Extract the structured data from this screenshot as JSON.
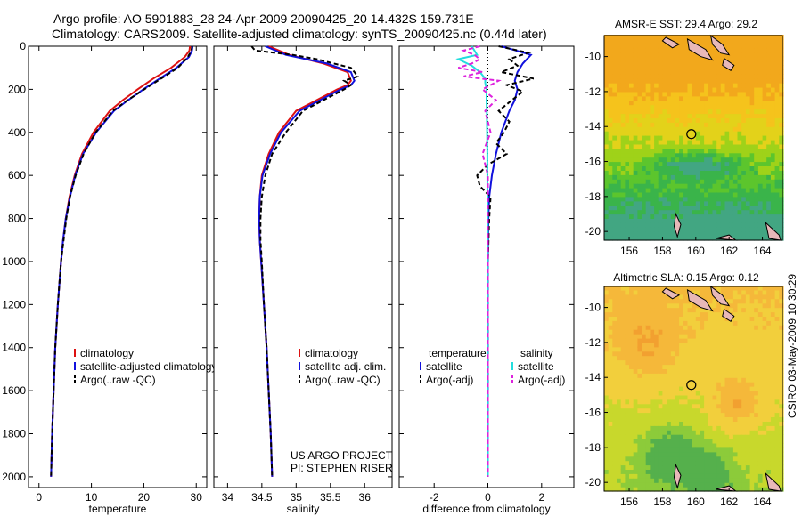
{
  "header": {
    "line1": "Argo profile: AO 5901883_28 24-Apr-2009 20090425_20 14.432S 159.731E",
    "line2": "Climatology: CARS2009. Satellite-adjusted climatology: synTS_20090425.nc (0.44d later)"
  },
  "side_stamp": "CSIRO 03-May-2009 10:30:29",
  "colors": {
    "clim": "#dd1111",
    "sat": "#1111dd",
    "argo": "#000000",
    "sal_sat": "#22dddd",
    "sal_argo": "#dd22dd"
  },
  "chart_data": [
    {
      "id": "temperature",
      "type": "line",
      "xlabel": "temperature",
      "xlim": [
        -2,
        32
      ],
      "ylim": [
        2050,
        0
      ],
      "xticks": [
        0,
        10,
        20,
        30
      ],
      "yticks": [
        0,
        200,
        400,
        600,
        800,
        1000,
        1200,
        1400,
        1600,
        1800,
        2000
      ],
      "legend": [
        "climatology",
        "satellite-adjusted climatology",
        "Argo(..raw -QC)"
      ],
      "series": [
        {
          "name": "climatology",
          "color_key": "clim",
          "dash": "",
          "depth": [
            0,
            20,
            50,
            100,
            150,
            200,
            250,
            300,
            400,
            500,
            600,
            700,
            800,
            900,
            1000,
            1200,
            1400,
            1600,
            1800,
            2000
          ],
          "values": [
            28.8,
            28.7,
            27.8,
            25.2,
            21.8,
            18.8,
            16.0,
            13.5,
            10.4,
            8.2,
            6.8,
            5.8,
            5.1,
            4.6,
            4.2,
            3.6,
            3.1,
            2.8,
            2.5,
            2.3
          ]
        },
        {
          "name": "satellite-adjusted climatology",
          "color_key": "sat",
          "dash": "",
          "depth": [
            0,
            20,
            50,
            100,
            150,
            200,
            250,
            300,
            400,
            500,
            600,
            700,
            800,
            900,
            1000,
            1200,
            1400,
            1600,
            1800,
            2000
          ],
          "values": [
            29.3,
            29.2,
            28.6,
            26.2,
            23.0,
            19.9,
            17.0,
            14.3,
            10.9,
            8.4,
            6.9,
            5.9,
            5.1,
            4.6,
            4.2,
            3.6,
            3.1,
            2.8,
            2.5,
            2.3
          ]
        },
        {
          "name": "Argo(..raw -QC)",
          "color_key": "argo",
          "dash": "5,3",
          "depth": [
            0,
            20,
            50,
            100,
            150,
            200,
            250,
            300,
            400,
            500,
            600,
            700,
            800,
            900,
            1000,
            1200,
            1400,
            1600,
            1800,
            2000
          ],
          "values": [
            29.2,
            29.1,
            28.4,
            26.5,
            23.3,
            20.1,
            16.9,
            14.1,
            10.8,
            8.5,
            7.0,
            5.9,
            5.2,
            4.7,
            4.2,
            3.6,
            3.1,
            2.8,
            2.5,
            2.3
          ]
        }
      ]
    },
    {
      "id": "salinity",
      "type": "line",
      "xlabel": "salinity",
      "xlim": [
        33.8,
        36.4
      ],
      "ylim": [
        2050,
        0
      ],
      "xticks": [
        34,
        34.5,
        35,
        35.5,
        36
      ],
      "yticks": [],
      "legend": [
        "climatology",
        "satellite adj. clim.",
        "Argo(..raw -QC)"
      ],
      "annotation": [
        "US ARGO PROJECT",
        "PI: STEPHEN RISER"
      ],
      "series": [
        {
          "name": "climatology",
          "color_key": "clim",
          "dash": "",
          "depth": [
            0,
            40,
            80,
            120,
            160,
            180,
            200,
            250,
            300,
            400,
            500,
            600,
            700,
            800,
            900,
            1000,
            1200,
            1400,
            1600,
            1800,
            2000
          ],
          "values": [
            34.6,
            34.9,
            35.4,
            35.75,
            35.8,
            35.75,
            35.6,
            35.3,
            35.0,
            34.75,
            34.6,
            34.5,
            34.47,
            34.46,
            34.47,
            34.49,
            34.53,
            34.57,
            34.6,
            34.63,
            34.65
          ]
        },
        {
          "name": "satellite adj. clim.",
          "color_key": "sat",
          "dash": "",
          "depth": [
            0,
            40,
            80,
            120,
            160,
            180,
            200,
            250,
            300,
            400,
            500,
            600,
            700,
            800,
            900,
            1000,
            1200,
            1400,
            1600,
            1800,
            2000
          ],
          "values": [
            34.55,
            34.85,
            35.45,
            35.8,
            35.85,
            35.8,
            35.65,
            35.35,
            35.05,
            34.78,
            34.62,
            34.51,
            34.47,
            34.46,
            34.47,
            34.49,
            34.53,
            34.57,
            34.6,
            34.63,
            34.65
          ]
        },
        {
          "name": "Argo(..raw -QC)",
          "color_key": "argo",
          "dash": "5,3",
          "depth": [
            0,
            20,
            40,
            60,
            80,
            100,
            120,
            140,
            160,
            180,
            200,
            250,
            300,
            400,
            500,
            600,
            700,
            800,
            900,
            1000,
            1200,
            1400,
            1600,
            1800,
            2000
          ],
          "values": [
            34.35,
            34.4,
            34.95,
            35.3,
            35.55,
            35.8,
            35.85,
            35.9,
            35.7,
            35.8,
            35.7,
            35.4,
            35.1,
            34.85,
            34.65,
            34.55,
            34.5,
            34.48,
            34.48,
            34.5,
            34.53,
            34.57,
            34.6,
            34.63,
            34.65
          ]
        }
      ]
    },
    {
      "id": "difference",
      "type": "line",
      "xlabel": "difference from climatology",
      "xlim": [
        -3.3,
        3.2
      ],
      "ylim": [
        2050,
        0
      ],
      "xticks": [
        -2,
        0,
        2
      ],
      "yticks": [],
      "legend_temperature": [
        "temperature",
        "satellite",
        "Argo(-adj)"
      ],
      "legend_salinity": [
        "salinity",
        "satellite",
        "Argo(-adj)"
      ],
      "series": [
        {
          "name": "temperature satellite",
          "color_key": "sat",
          "dash": "",
          "depth": [
            0,
            40,
            80,
            120,
            160,
            200,
            250,
            300,
            400,
            500,
            600,
            700,
            800,
            1000,
            1500,
            2000
          ],
          "values": [
            0.5,
            1.6,
            1.3,
            1.1,
            1.0,
            1.1,
            1.0,
            0.8,
            0.5,
            0.3,
            0.15,
            0.05,
            0.02,
            0.0,
            0.0,
            0.0
          ]
        },
        {
          "name": "temperature Argo(-adj)",
          "color_key": "argo",
          "dash": "5,3",
          "depth": [
            0,
            30,
            60,
            90,
            120,
            150,
            180,
            210,
            250,
            300,
            350,
            400,
            450,
            500,
            550,
            600,
            650,
            700,
            800,
            1000,
            1500,
            2000
          ],
          "values": [
            0.4,
            1.5,
            0.8,
            1.1,
            0.5,
            1.7,
            0.7,
            1.3,
            0.9,
            0.4,
            0.8,
            0.6,
            0.3,
            0.7,
            0.0,
            -0.4,
            -0.3,
            0.1,
            0.05,
            0.0,
            0.0,
            0.0
          ]
        },
        {
          "name": "salinity satellite",
          "color_key": "sal_sat",
          "dash": "",
          "depth": [
            0,
            40,
            60,
            90,
            120,
            150,
            170,
            200,
            250,
            300,
            400,
            500,
            600,
            800,
            1000,
            1500,
            2000
          ],
          "values": [
            -0.6,
            -0.4,
            -1.1,
            -0.6,
            -0.3,
            -0.1,
            -0.1,
            -0.05,
            -0.05,
            -0.04,
            -0.03,
            -0.02,
            -0.02,
            -0.01,
            -0.01,
            -0.01,
            0.0
          ]
        },
        {
          "name": "salinity Argo(-adj)",
          "color_key": "sal_argo",
          "dash": "5,3",
          "depth": [
            0,
            20,
            40,
            60,
            80,
            100,
            120,
            140,
            160,
            200,
            250,
            300,
            400,
            500,
            600,
            700,
            800,
            1000,
            1500,
            2000
          ],
          "values": [
            -0.3,
            -0.9,
            -0.5,
            -0.3,
            -0.6,
            -1.1,
            -0.2,
            -0.9,
            0.4,
            -0.2,
            0.3,
            -0.1,
            0.1,
            -0.2,
            0.0,
            0.0,
            0.0,
            0.0,
            0.0,
            0.0
          ]
        }
      ]
    },
    {
      "id": "sst_map",
      "type": "heatmap",
      "title": "AMSR-E SST: 29.4 Argo: 29.2",
      "xlim": [
        154.5,
        165.2
      ],
      "ylim": [
        -20.5,
        -8.8
      ],
      "xticks": [
        156,
        158,
        160,
        162,
        164
      ],
      "yticks": [
        -10,
        -12,
        -14,
        -16,
        -18,
        -20
      ],
      "marker": {
        "lon": 159.731,
        "lat": -14.432
      }
    },
    {
      "id": "sla_map",
      "type": "heatmap",
      "title": "Altimetric SLA: 0.15 Argo: 0.12",
      "xlim": [
        154.5,
        165.2
      ],
      "ylim": [
        -20.5,
        -8.8
      ],
      "xticks": [
        156,
        158,
        160,
        162,
        164
      ],
      "yticks": [
        -10,
        -12,
        -14,
        -16,
        -18,
        -20
      ],
      "marker": {
        "lon": 159.731,
        "lat": -14.432
      }
    }
  ]
}
